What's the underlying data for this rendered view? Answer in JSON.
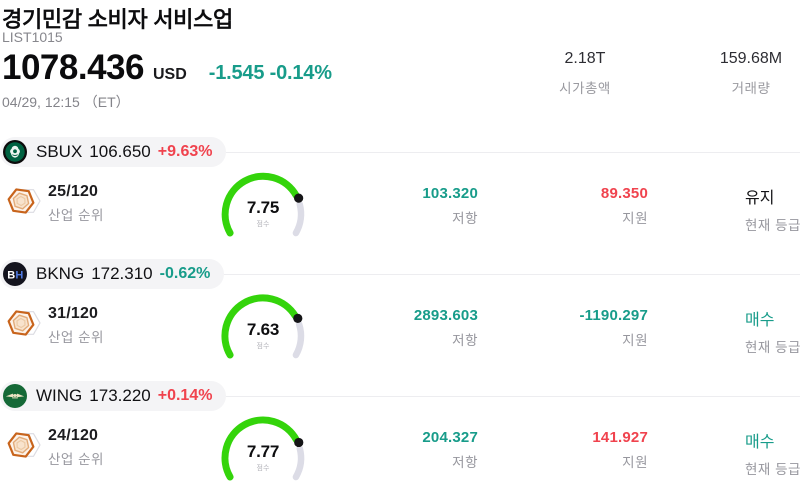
{
  "colors": {
    "red": "#f0434e",
    "teal": "#189c8a",
    "gauge_green": "#34d40b",
    "gauge_track": "#dcdce6"
  },
  "gauge": {
    "max": 10
  },
  "header": {
    "title": "경기민감 소비자 서비스업",
    "list_id": "LIST1015",
    "price": "1078.436",
    "currency": "USD",
    "change": "-1.545 -0.14%",
    "change_color": "teal",
    "datetime": "04/29, 12:15 （ET）",
    "stats": [
      {
        "value": "2.18T",
        "label": "시가총액"
      },
      {
        "value": "159.68M",
        "label": "거래량"
      }
    ]
  },
  "labels": {
    "rank": "산업 순위",
    "score": "점수",
    "resistance": "저항",
    "support": "지원",
    "rating": "현재 등급"
  },
  "stocks": [
    {
      "ticker": "SBUX",
      "price": "106.650",
      "change": "+9.63%",
      "change_color": "red",
      "logo": "starbucks-logo",
      "rank": "25/120",
      "score": "7.75",
      "score_value": 7.75,
      "resistance": "103.320",
      "resistance_color": "teal",
      "support": "89.350",
      "support_color": "red",
      "rating": "유지",
      "rating_color": "black"
    },
    {
      "ticker": "BKNG",
      "price": "172.310",
      "change": "-0.62%",
      "change_color": "teal",
      "logo": "booking-logo",
      "logo_letters": [
        "B",
        "H"
      ],
      "rank": "31/120",
      "score": "7.63",
      "score_value": 7.63,
      "resistance": "2893.603",
      "resistance_color": "teal",
      "support": "-1190.297",
      "support_color": "teal",
      "rating": "매수",
      "rating_color": "teal"
    },
    {
      "ticker": "WING",
      "price": "173.220",
      "change": "+0.14%",
      "change_color": "red",
      "logo": "wingstop-logo",
      "rank": "24/120",
      "score": "7.77",
      "score_value": 7.77,
      "resistance": "204.327",
      "resistance_color": "teal",
      "support": "141.927",
      "support_color": "red",
      "rating": "매수",
      "rating_color": "teal"
    }
  ]
}
